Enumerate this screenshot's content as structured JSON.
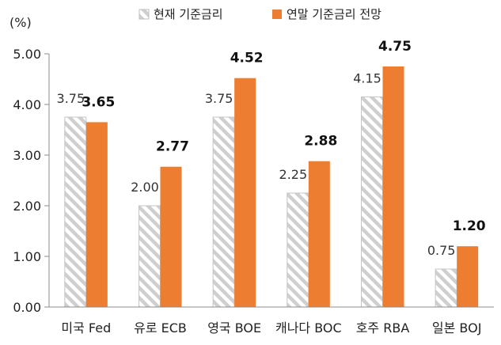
{
  "chart_data": {
    "type": "bar",
    "unit_label": "(%)",
    "categories": [
      "미국 Fed",
      "유로 ECB",
      "영국 BOE",
      "캐나다 BOC",
      "호주 RBA",
      "일본 BOJ"
    ],
    "series": [
      {
        "name": "현재 기준금리",
        "values": [
          3.75,
          2.0,
          3.75,
          2.25,
          4.15,
          0.75
        ],
        "value_labels": [
          "3.75",
          "2.00",
          "3.75",
          "2.25",
          "4.15",
          "0.75"
        ],
        "color": "#c8c8c8",
        "pattern": "diagonal-hatch"
      },
      {
        "name": "연말 기준금리 전망",
        "values": [
          3.65,
          2.77,
          4.52,
          2.88,
          4.75,
          1.2
        ],
        "value_labels": [
          "3.65",
          "2.77",
          "4.52",
          "2.88",
          "4.75",
          "1.20"
        ],
        "color": "#ed7d31",
        "pattern": "solid"
      }
    ],
    "ylim": [
      0,
      5
    ],
    "yticks": [
      0,
      1,
      2,
      3,
      4,
      5
    ],
    "ytick_labels": [
      "0.00",
      "1.00",
      "2.00",
      "3.00",
      "4.00",
      "5.00"
    ],
    "legend_position": "top",
    "grid": false
  }
}
